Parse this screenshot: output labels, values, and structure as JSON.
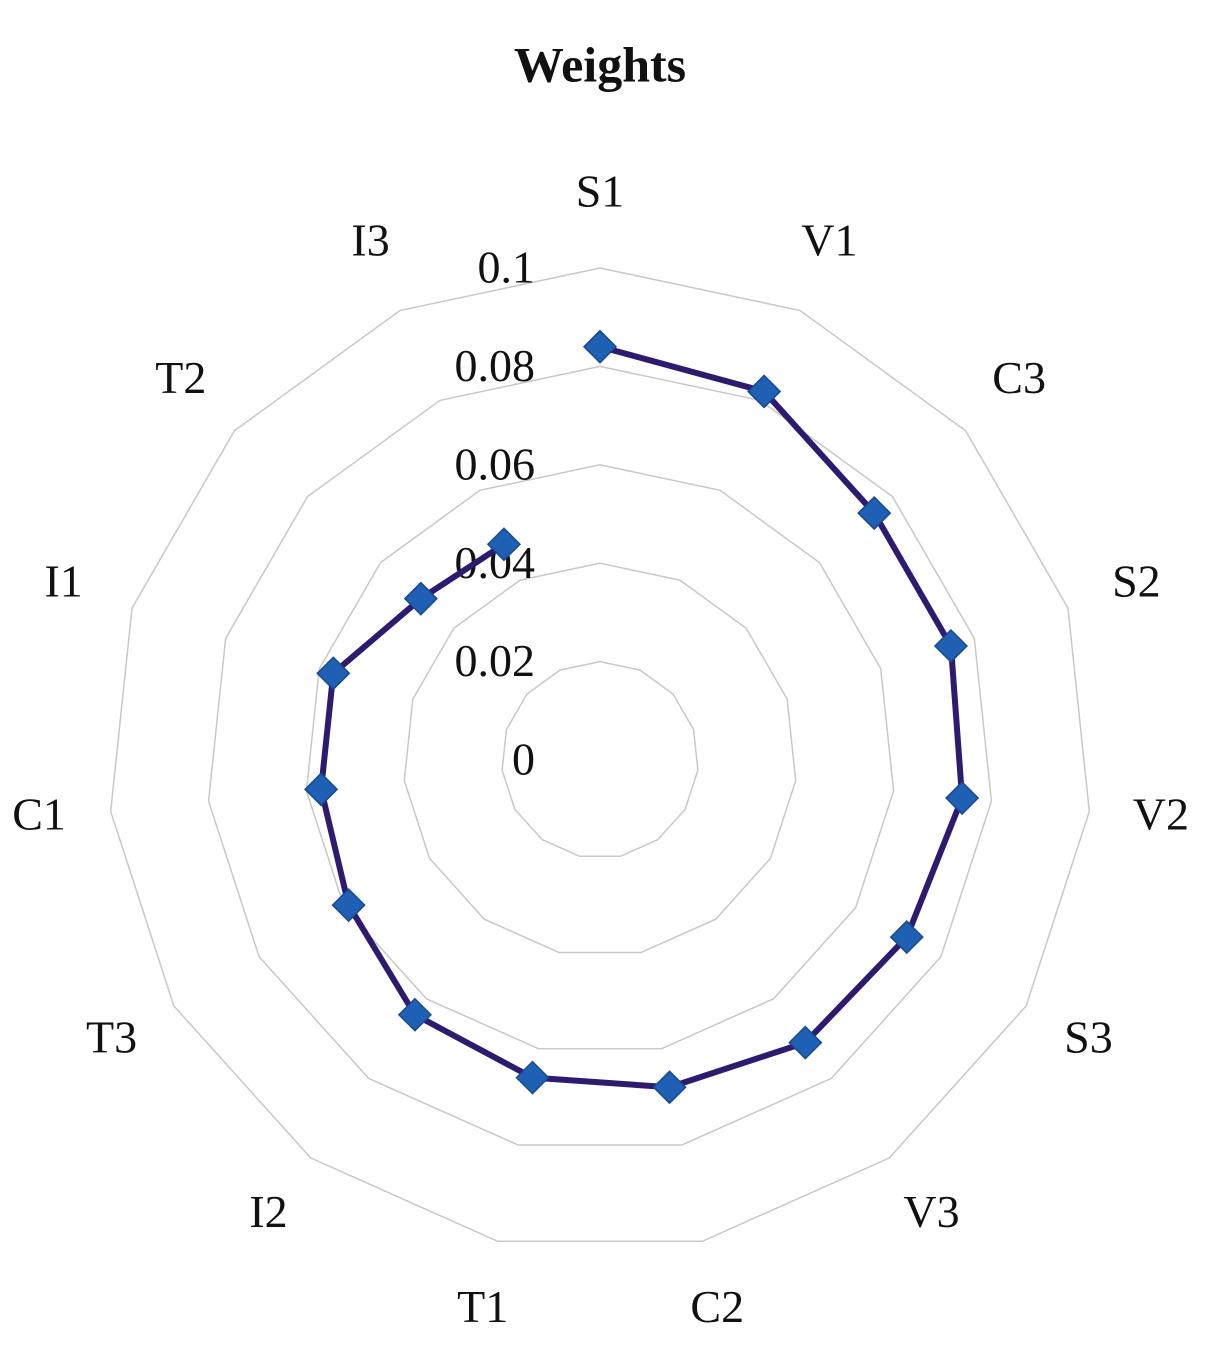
{
  "chart_data": {
    "type": "radar",
    "title": "Weights",
    "categories": [
      "S1",
      "V1",
      "C3",
      "S2",
      "V2",
      "S3",
      "V3",
      "C2",
      "T1",
      "I2",
      "T3",
      "C1",
      "I1",
      "T2",
      "I3"
    ],
    "series": [
      {
        "name": "Weights",
        "color": "#2e1a6e",
        "marker_color": "#1f5fb4",
        "values": [
          0.084,
          0.082,
          0.075,
          0.075,
          0.074,
          0.072,
          0.071,
          0.068,
          0.066,
          0.064,
          0.059,
          0.057,
          0.057,
          0.049,
          0.048
        ]
      }
    ],
    "ylim": [
      0,
      0.1
    ],
    "yticks": [
      0,
      0.02,
      0.04,
      0.06,
      0.08,
      0.1
    ],
    "grid": true
  }
}
